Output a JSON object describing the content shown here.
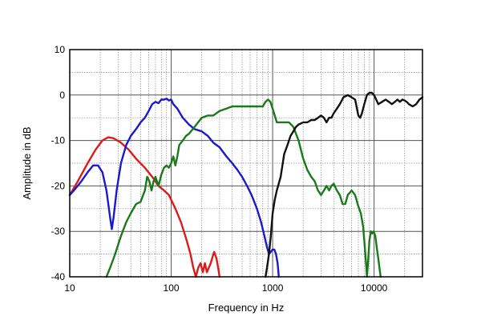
{
  "chart_data": {
    "type": "line",
    "xscale": "log",
    "xlim": [
      10,
      30000
    ],
    "ylim": [
      -40,
      10
    ],
    "xlabel": "Frequency in Hz",
    "ylabel": "Amplitude in dB",
    "grid": true,
    "x_ticks": [
      {
        "value": 10,
        "label": "10"
      },
      {
        "value": 100,
        "label": "100"
      },
      {
        "value": 1000,
        "label": "1000"
      },
      {
        "value": 10000,
        "label": "10000"
      }
    ],
    "y_ticks": [
      {
        "value": 10,
        "label": "10"
      },
      {
        "value": 0,
        "label": "0"
      },
      {
        "value": -10,
        "label": "-10"
      },
      {
        "value": -20,
        "label": "-20"
      },
      {
        "value": -30,
        "label": "-30"
      },
      {
        "value": -40,
        "label": "-40"
      }
    ],
    "series": [
      {
        "color": "#dd1a1a",
        "points": [
          [
            10,
            -22
          ],
          [
            12,
            -19
          ],
          [
            15,
            -15
          ],
          [
            18,
            -12
          ],
          [
            21,
            -10
          ],
          [
            24,
            -9.3
          ],
          [
            27,
            -9.5
          ],
          [
            32,
            -10.5
          ],
          [
            38,
            -12
          ],
          [
            45,
            -14
          ],
          [
            55,
            -16
          ],
          [
            65,
            -18
          ],
          [
            75,
            -20
          ],
          [
            85,
            -21
          ],
          [
            95,
            -22
          ],
          [
            110,
            -25
          ],
          [
            125,
            -28
          ],
          [
            140,
            -31.5
          ],
          [
            155,
            -35
          ],
          [
            165,
            -38
          ],
          [
            175,
            -40
          ],
          [
            185,
            -38
          ],
          [
            195,
            -37
          ],
          [
            205,
            -39
          ],
          [
            215,
            -37
          ],
          [
            225,
            -39
          ],
          [
            245,
            -37
          ],
          [
            265,
            -34.5
          ],
          [
            280,
            -36
          ],
          [
            290,
            -38
          ],
          [
            300,
            -40
          ]
        ]
      },
      {
        "color": "#1a1acc",
        "points": [
          [
            10,
            -22
          ],
          [
            11,
            -21
          ],
          [
            13,
            -19
          ],
          [
            15,
            -17
          ],
          [
            17,
            -15.5
          ],
          [
            19,
            -15.5
          ],
          [
            21,
            -17
          ],
          [
            23,
            -21
          ],
          [
            24,
            -24
          ],
          [
            25,
            -27
          ],
          [
            26,
            -29.5
          ],
          [
            27,
            -27
          ],
          [
            29,
            -21
          ],
          [
            32,
            -15
          ],
          [
            36,
            -11
          ],
          [
            40,
            -9
          ],
          [
            45,
            -7.5
          ],
          [
            50,
            -6
          ],
          [
            55,
            -5
          ],
          [
            60,
            -3.5
          ],
          [
            65,
            -2
          ],
          [
            70,
            -1.5
          ],
          [
            75,
            -1.8
          ],
          [
            80,
            -1
          ],
          [
            85,
            -1
          ],
          [
            90,
            -0.8
          ],
          [
            95,
            -1.2
          ],
          [
            100,
            -1
          ],
          [
            105,
            -2
          ],
          [
            115,
            -3
          ],
          [
            130,
            -5
          ],
          [
            150,
            -6.5
          ],
          [
            170,
            -7.5
          ],
          [
            200,
            -8
          ],
          [
            230,
            -9
          ],
          [
            260,
            -10.5
          ],
          [
            300,
            -11.5
          ],
          [
            350,
            -13.5
          ],
          [
            400,
            -15
          ],
          [
            450,
            -16.5
          ],
          [
            500,
            -18
          ],
          [
            560,
            -20
          ],
          [
            620,
            -22
          ],
          [
            700,
            -25
          ],
          [
            770,
            -28
          ],
          [
            830,
            -31
          ],
          [
            880,
            -33.5
          ],
          [
            920,
            -35
          ],
          [
            960,
            -34.5
          ],
          [
            1000,
            -34
          ],
          [
            1040,
            -34
          ],
          [
            1080,
            -35
          ],
          [
            1120,
            -37
          ],
          [
            1150,
            -40
          ]
        ]
      },
      {
        "color": "#1a7a1a",
        "points": [
          [
            23,
            -40
          ],
          [
            25,
            -38
          ],
          [
            28,
            -35
          ],
          [
            32,
            -31
          ],
          [
            36,
            -28
          ],
          [
            40,
            -26
          ],
          [
            45,
            -24
          ],
          [
            50,
            -23.5
          ],
          [
            55,
            -21
          ],
          [
            58,
            -18
          ],
          [
            61,
            -19
          ],
          [
            64,
            -21
          ],
          [
            67,
            -19
          ],
          [
            70,
            -18
          ],
          [
            75,
            -20
          ],
          [
            80,
            -17.5
          ],
          [
            85,
            -16
          ],
          [
            90,
            -15.5
          ],
          [
            95,
            -16
          ],
          [
            100,
            -15
          ],
          [
            105,
            -13.5
          ],
          [
            110,
            -15.5
          ],
          [
            115,
            -13.5
          ],
          [
            120,
            -11
          ],
          [
            130,
            -10
          ],
          [
            140,
            -9
          ],
          [
            150,
            -8.5
          ],
          [
            170,
            -7
          ],
          [
            200,
            -5
          ],
          [
            230,
            -4.5
          ],
          [
            260,
            -4.5
          ],
          [
            300,
            -3.5
          ],
          [
            350,
            -3
          ],
          [
            400,
            -2.5
          ],
          [
            450,
            -2.5
          ],
          [
            500,
            -2.5
          ],
          [
            600,
            -2.5
          ],
          [
            700,
            -2.5
          ],
          [
            800,
            -2.5
          ],
          [
            850,
            -1.5
          ],
          [
            900,
            -1
          ],
          [
            950,
            -1.5
          ],
          [
            1000,
            -3
          ],
          [
            1100,
            -6
          ],
          [
            1200,
            -6
          ],
          [
            1350,
            -6
          ],
          [
            1450,
            -6
          ],
          [
            1600,
            -7
          ],
          [
            1800,
            -10
          ],
          [
            2000,
            -14
          ],
          [
            2200,
            -16.5
          ],
          [
            2400,
            -18
          ],
          [
            2600,
            -19
          ],
          [
            2800,
            -21
          ],
          [
            3000,
            -22
          ],
          [
            3200,
            -21
          ],
          [
            3400,
            -20
          ],
          [
            3600,
            -21
          ],
          [
            3800,
            -20
          ],
          [
            4000,
            -19.5
          ],
          [
            4300,
            -21
          ],
          [
            4600,
            -22
          ],
          [
            4900,
            -24
          ],
          [
            5200,
            -24
          ],
          [
            5500,
            -22
          ],
          [
            6000,
            -21
          ],
          [
            6500,
            -22
          ],
          [
            7000,
            -24.5
          ],
          [
            7400,
            -26
          ],
          [
            7800,
            -29
          ],
          [
            8000,
            -32
          ],
          [
            8200,
            -35
          ],
          [
            8400,
            -38
          ],
          [
            8500,
            -40
          ],
          [
            8700,
            -37
          ],
          [
            9000,
            -32
          ],
          [
            9300,
            -30
          ],
          [
            9600,
            -30.5
          ],
          [
            9900,
            -30
          ],
          [
            10300,
            -31
          ],
          [
            10700,
            -34
          ],
          [
            11000,
            -36
          ],
          [
            11300,
            -38
          ],
          [
            11600,
            -40
          ]
        ]
      },
      {
        "color": "#111111",
        "points": [
          [
            850,
            -40
          ],
          [
            880,
            -38
          ],
          [
            920,
            -35
          ],
          [
            960,
            -31
          ],
          [
            1000,
            -26
          ],
          [
            1050,
            -23
          ],
          [
            1100,
            -21
          ],
          [
            1200,
            -18
          ],
          [
            1300,
            -13
          ],
          [
            1400,
            -11
          ],
          [
            1500,
            -9
          ],
          [
            1600,
            -8
          ],
          [
            1700,
            -7
          ],
          [
            1800,
            -6.5
          ],
          [
            2000,
            -6
          ],
          [
            2200,
            -6
          ],
          [
            2400,
            -5.5
          ],
          [
            2600,
            -5.5
          ],
          [
            2800,
            -5
          ],
          [
            3000,
            -4.5
          ],
          [
            3200,
            -5
          ],
          [
            3400,
            -6
          ],
          [
            3600,
            -5
          ],
          [
            3800,
            -5
          ],
          [
            4000,
            -4
          ],
          [
            4300,
            -3
          ],
          [
            4600,
            -2
          ],
          [
            5000,
            -0.5
          ],
          [
            5500,
            0
          ],
          [
            6000,
            -0.5
          ],
          [
            6500,
            -1
          ],
          [
            7000,
            -4.5
          ],
          [
            7300,
            -5
          ],
          [
            7600,
            -4
          ],
          [
            8000,
            -2
          ],
          [
            8500,
            0
          ],
          [
            9000,
            0.5
          ],
          [
            9500,
            0.5
          ],
          [
            10000,
            0
          ],
          [
            10500,
            -1
          ],
          [
            11000,
            -2
          ],
          [
            12000,
            -1.5
          ],
          [
            13000,
            -1
          ],
          [
            14000,
            -1.5
          ],
          [
            15000,
            -2
          ],
          [
            16000,
            -1.5
          ],
          [
            17000,
            -1
          ],
          [
            18000,
            -1.5
          ],
          [
            19000,
            -1
          ],
          [
            20000,
            -1.2
          ],
          [
            21000,
            -1.5
          ],
          [
            22000,
            -2
          ],
          [
            24000,
            -2.5
          ],
          [
            26000,
            -2
          ],
          [
            28000,
            -1
          ],
          [
            30000,
            -0.5
          ]
        ]
      }
    ]
  }
}
